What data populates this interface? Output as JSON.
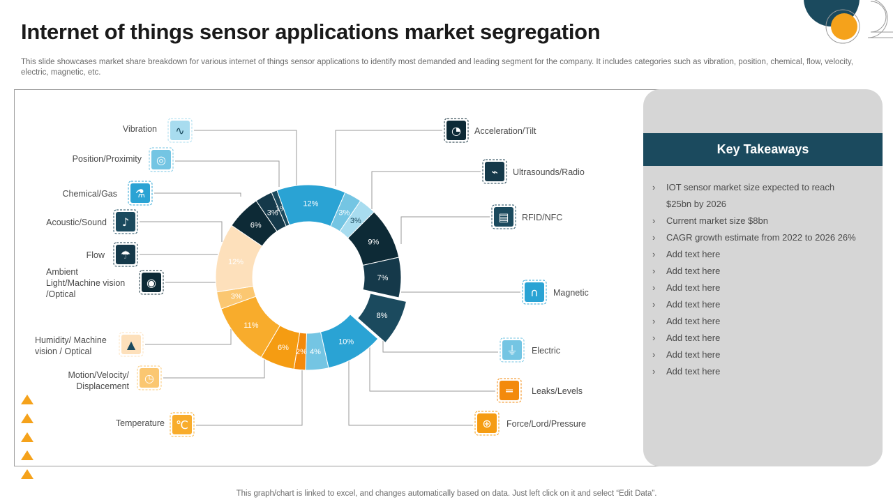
{
  "page": {
    "title": "Internet of things sensor applications market segregation",
    "subtitle": "This slide showcases market share breakdown for various internet of things sensor applications to identify most demanded and leading segment for the company. It includes categories such as vibration, position, chemical, flow, velocity,  electric, magnetic, etc.",
    "footnote": "This graph/chart is linked to excel,  and changes automatically based on data. Just left click on it and select “Edit Data”."
  },
  "takeaways": {
    "heading": "Key Takeaways",
    "items": [
      "IOT  sensor market size expected to reach $25bn  by 2026",
      "Current  market size $8bn",
      "CAGR growth  estimate from  2022 to 2026  26%",
      "Add text here",
      "Add text here",
      "Add text here",
      "Add text here",
      "Add text here",
      "Add text here",
      "Add text here",
      "Add text here"
    ]
  },
  "chart_data": {
    "type": "pie",
    "variant": "donut",
    "unit": "%",
    "slices": [
      {
        "label": "Acceleration/Tilt",
        "value": 9,
        "display": "9%",
        "color": "#0d2a36",
        "icon": "speedometer-icon",
        "exploded": false
      },
      {
        "label": "Ultrasounds/Radio",
        "value": 7,
        "display": "7%",
        "color": "#15394a",
        "icon": "radio-icon",
        "exploded": false
      },
      {
        "label": "RFID/NFC",
        "value": 8,
        "display": "8%",
        "color": "#1b4a5e",
        "icon": "rfid-icon",
        "exploded": true
      },
      {
        "label": "Magnetic",
        "value": 10,
        "display": "10%",
        "color": "#2aa3d4",
        "icon": "magnet-icon",
        "exploded": false
      },
      {
        "label": "Electric",
        "value": 4,
        "display": "4%",
        "color": "#74c5e3",
        "icon": "plug-icon",
        "exploded": false
      },
      {
        "label": "Leaks/Levels",
        "value": 2,
        "display": "2%",
        "color": "#f38a0c",
        "icon": "pipe-icon",
        "exploded": false
      },
      {
        "label": "Force/Lord/Pressure",
        "value": 6,
        "display": "6%",
        "color": "#f59c12",
        "icon": "pressure-icon",
        "exploded": false
      },
      {
        "label": "Temperature",
        "value": 11,
        "display": "11%",
        "color": "#f8ac2c",
        "icon": "thermometer-icon",
        "exploded": false
      },
      {
        "label": "Motion/Velocity/ Displacement",
        "value": 3,
        "display": "3%",
        "color": "#fbc771",
        "icon": "stopwatch-icon",
        "exploded": false
      },
      {
        "label": "Humidity/ Machine vision  / Optical",
        "value": 12,
        "display": "12%",
        "color": "#fde0bb",
        "icon": "droplet-icon",
        "exploded": false
      },
      {
        "label": "Ambient Light/Machine vision /Optical",
        "value": 6,
        "display": "6%",
        "color": "#0d2a36",
        "icon": "eye-icon",
        "exploded": false
      },
      {
        "label": "Flow",
        "value": 3,
        "display": "3%",
        "color": "#15394a",
        "icon": "tap-icon",
        "exploded": false
      },
      {
        "label": "Acoustic/Sound",
        "value": 1,
        "display": "1%",
        "color": "#1b4a5e",
        "icon": "sound-icon",
        "exploded": false
      },
      {
        "label": "Chemical/Gas",
        "value": 12,
        "display": "12%",
        "color": "#2aa3d4",
        "icon": "flask-icon",
        "exploded": false
      },
      {
        "label": "Position/Proximity",
        "value": 3,
        "display": "3%",
        "color": "#74c5e3",
        "icon": "location-icon",
        "exploded": false
      },
      {
        "label": "Vibration",
        "value": 3,
        "display": "3%",
        "color": "#a8dcef",
        "icon": "waveform-icon",
        "exploded": false
      }
    ]
  },
  "colors": {
    "dark_navy": "#0d2a36",
    "teal_dark": "#1b4a5e",
    "blue": "#2aa3d4",
    "light_blue": "#74c5e3",
    "orange": "#f5a21b",
    "peach": "#fde0bb"
  }
}
